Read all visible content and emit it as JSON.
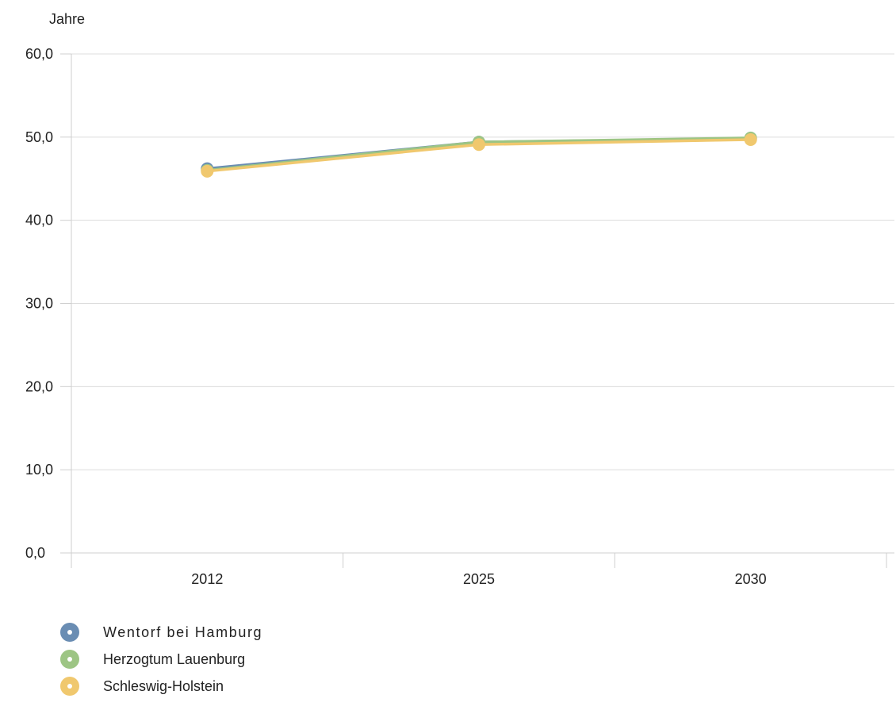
{
  "chart_data": {
    "type": "line",
    "unit_label": "Jahre",
    "categories": [
      "2012",
      "2025",
      "2030"
    ],
    "y_ticks": [
      "0,0",
      "10,0",
      "20,0",
      "30,0",
      "40,0",
      "50,0",
      "60,0"
    ],
    "ylim": [
      0,
      60
    ],
    "grid": true,
    "legend_position": "bottom-left",
    "series": [
      {
        "name": "Wentorf bei Hamburg",
        "values": [
          46.2,
          49.4,
          49.8
        ],
        "color": "#6a8db3"
      },
      {
        "name": "Herzogtum Lauenburg",
        "values": [
          46.0,
          49.4,
          49.9
        ],
        "color": "#9dc584"
      },
      {
        "name": "Schleswig-Holstein",
        "values": [
          45.9,
          49.1,
          49.7
        ],
        "color": "#f0c86e"
      }
    ]
  }
}
